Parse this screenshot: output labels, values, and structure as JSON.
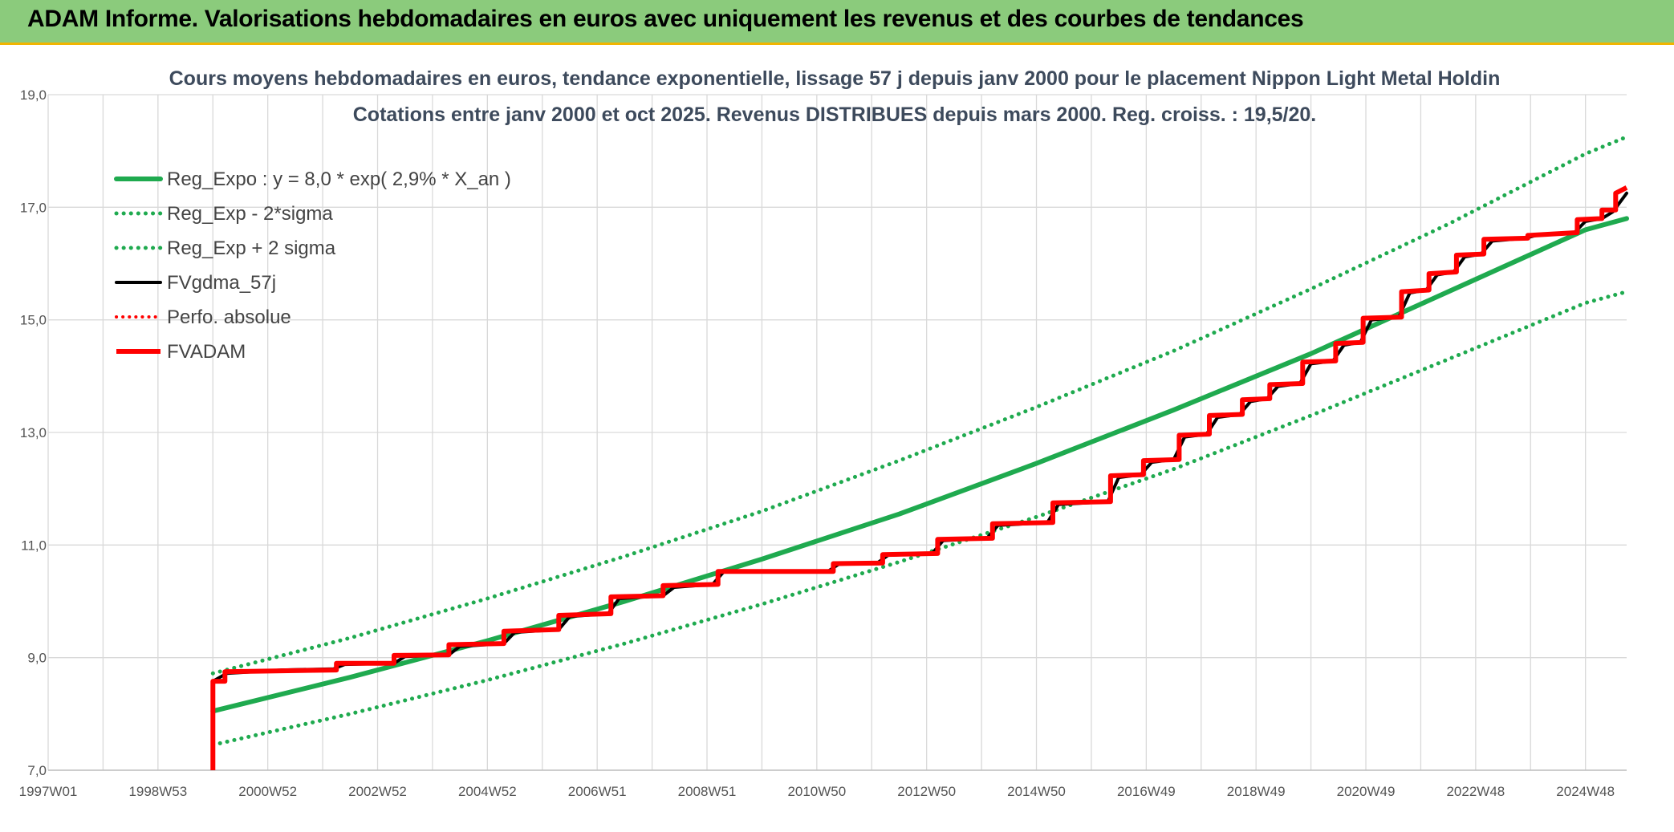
{
  "header": {
    "title": "ADAM Informe. Valorisations hebdomadaires en euros avec uniquement les revenus et des courbes de tendances"
  },
  "colors": {
    "header_bg": "#8bcb7c",
    "header_accent": "#f0b400",
    "reg_green": "#1faa4f",
    "fv_black": "#000000",
    "adam_red": "#ff0000",
    "grid": "#d9d9d9"
  },
  "chart_data": {
    "type": "line",
    "title_line1": "Cours moyens hebdomadaires en euros, tendance exponentielle, lissage 57 j depuis janv 2000 pour le placement Nippon Light Metal Holdin",
    "title_line2": "Cotations entre janv 2000 et oct 2025. Revenus DISTRIBUES depuis mars 2000. Reg. croiss. : 19,5/20.",
    "xlabel": "",
    "ylabel": "",
    "ylim": [
      7.0,
      19.0
    ],
    "xlim": [
      1997.0,
      2025.75
    ],
    "grid": true,
    "legend_position": "top-left",
    "y_ticks": [
      "7,0",
      "9,0",
      "11,0",
      "13,0",
      "15,0",
      "17,0",
      "19,0"
    ],
    "x_ticks": [
      {
        "label": "1997W01",
        "x": 1997.0
      },
      {
        "label": "1998W53",
        "x": 1999.0
      },
      {
        "label": "2000W52",
        "x": 2001.0
      },
      {
        "label": "2002W52",
        "x": 2003.0
      },
      {
        "label": "2004W52",
        "x": 2005.0
      },
      {
        "label": "2006W51",
        "x": 2007.0
      },
      {
        "label": "2008W51",
        "x": 2009.0
      },
      {
        "label": "2010W50",
        "x": 2011.0
      },
      {
        "label": "2012W50",
        "x": 2013.0
      },
      {
        "label": "2014W50",
        "x": 2015.0
      },
      {
        "label": "2016W49",
        "x": 2017.0
      },
      {
        "label": "2018W49",
        "x": 2019.0
      },
      {
        "label": "2020W49",
        "x": 2021.0
      },
      {
        "label": "2022W48",
        "x": 2023.0
      },
      {
        "label": "2024W48",
        "x": 2025.0
      }
    ],
    "series": [
      {
        "name": "Reg_Expo : y = 8,0 * exp( 2,9% *  X_an )",
        "style": "solid-green",
        "points": [
          [
            2000.0,
            8.05
          ],
          [
            2002.5,
            8.65
          ],
          [
            2005.0,
            9.3
          ],
          [
            2007.5,
            10.0
          ],
          [
            2010.0,
            10.75
          ],
          [
            2012.5,
            11.55
          ],
          [
            2015.0,
            12.45
          ],
          [
            2017.5,
            13.4
          ],
          [
            2020.0,
            14.4
          ],
          [
            2022.5,
            15.5
          ],
          [
            2025.0,
            16.6
          ],
          [
            2025.75,
            16.8
          ]
        ]
      },
      {
        "name": "Reg_Exp - 2*sigma",
        "style": "dotted-green",
        "points": [
          [
            2000.0,
            7.45
          ],
          [
            2002.5,
            8.0
          ],
          [
            2005.0,
            8.6
          ],
          [
            2007.5,
            9.25
          ],
          [
            2010.0,
            9.95
          ],
          [
            2012.5,
            10.7
          ],
          [
            2015.0,
            11.5
          ],
          [
            2017.5,
            12.35
          ],
          [
            2020.0,
            13.3
          ],
          [
            2022.5,
            14.3
          ],
          [
            2025.0,
            15.3
          ],
          [
            2025.75,
            15.5
          ]
        ]
      },
      {
        "name": "Reg_Exp + 2 sigma",
        "style": "dotted-green",
        "points": [
          [
            2000.0,
            8.72
          ],
          [
            2002.5,
            9.35
          ],
          [
            2005.0,
            10.05
          ],
          [
            2007.5,
            10.8
          ],
          [
            2010.0,
            11.6
          ],
          [
            2012.5,
            12.5
          ],
          [
            2015.0,
            13.45
          ],
          [
            2017.5,
            14.45
          ],
          [
            2020.0,
            15.55
          ],
          [
            2022.5,
            16.7
          ],
          [
            2025.0,
            17.95
          ],
          [
            2025.75,
            18.25
          ]
        ]
      },
      {
        "name": "FVgdma_57j",
        "style": "solid-black",
        "points": [
          [
            2000.0,
            8.58
          ],
          [
            2000.25,
            8.72
          ],
          [
            2001.25,
            8.78
          ],
          [
            2002.2,
            8.8
          ],
          [
            2002.4,
            8.88
          ],
          [
            2003.3,
            8.9
          ],
          [
            2003.5,
            9.02
          ],
          [
            2004.3,
            9.05
          ],
          [
            2004.5,
            9.2
          ],
          [
            2005.3,
            9.25
          ],
          [
            2005.5,
            9.45
          ],
          [
            2006.3,
            9.5
          ],
          [
            2006.5,
            9.73
          ],
          [
            2007.2,
            9.78
          ],
          [
            2007.4,
            10.05
          ],
          [
            2008.2,
            10.1
          ],
          [
            2008.4,
            10.25
          ],
          [
            2009.1,
            10.3
          ],
          [
            2009.3,
            10.52
          ],
          [
            2011.2,
            10.53
          ],
          [
            2011.4,
            10.66
          ],
          [
            2012.1,
            10.68
          ],
          [
            2012.3,
            10.82
          ],
          [
            2013.1,
            10.85
          ],
          [
            2013.3,
            11.08
          ],
          [
            2014.1,
            11.12
          ],
          [
            2014.3,
            11.35
          ],
          [
            2015.2,
            11.4
          ],
          [
            2015.4,
            11.72
          ],
          [
            2016.3,
            11.77
          ],
          [
            2016.5,
            12.2
          ],
          [
            2016.9,
            12.25
          ],
          [
            2017.1,
            12.47
          ],
          [
            2017.5,
            12.52
          ],
          [
            2017.7,
            12.92
          ],
          [
            2018.1,
            12.97
          ],
          [
            2018.3,
            13.27
          ],
          [
            2018.7,
            13.32
          ],
          [
            2018.9,
            13.55
          ],
          [
            2019.2,
            13.6
          ],
          [
            2019.4,
            13.82
          ],
          [
            2019.8,
            13.87
          ],
          [
            2020.0,
            14.22
          ],
          [
            2020.4,
            14.27
          ],
          [
            2020.6,
            14.55
          ],
          [
            2020.9,
            14.6
          ],
          [
            2021.1,
            15.0
          ],
          [
            2021.6,
            15.05
          ],
          [
            2021.8,
            15.48
          ],
          [
            2022.1,
            15.53
          ],
          [
            2022.3,
            15.8
          ],
          [
            2022.6,
            15.85
          ],
          [
            2022.8,
            16.12
          ],
          [
            2023.1,
            16.17
          ],
          [
            2023.3,
            16.4
          ],
          [
            2023.9,
            16.45
          ],
          [
            2024.1,
            16.5
          ],
          [
            2024.8,
            16.55
          ],
          [
            2025.0,
            16.75
          ],
          [
            2025.3,
            16.8
          ],
          [
            2025.5,
            16.92
          ],
          [
            2025.75,
            17.25
          ]
        ]
      },
      {
        "name": "Perfo. absolue",
        "style": "dotted-red",
        "points": []
      },
      {
        "name": "FVADAM",
        "style": "steps-red",
        "points": [
          [
            2000.0,
            7.0
          ],
          [
            2000.0,
            8.58
          ],
          [
            2000.22,
            8.58
          ],
          [
            2000.22,
            8.75
          ],
          [
            2002.25,
            8.78
          ],
          [
            2002.25,
            8.9
          ],
          [
            2003.3,
            8.9
          ],
          [
            2003.3,
            9.04
          ],
          [
            2004.3,
            9.05
          ],
          [
            2004.3,
            9.23
          ],
          [
            2005.3,
            9.25
          ],
          [
            2005.3,
            9.47
          ],
          [
            2006.3,
            9.5
          ],
          [
            2006.3,
            9.75
          ],
          [
            2007.25,
            9.78
          ],
          [
            2007.25,
            10.08
          ],
          [
            2008.2,
            10.1
          ],
          [
            2008.2,
            10.28
          ],
          [
            2009.2,
            10.3
          ],
          [
            2009.2,
            10.53
          ],
          [
            2011.3,
            10.53
          ],
          [
            2011.3,
            10.67
          ],
          [
            2012.2,
            10.68
          ],
          [
            2012.2,
            10.83
          ],
          [
            2013.2,
            10.85
          ],
          [
            2013.2,
            11.1
          ],
          [
            2014.2,
            11.12
          ],
          [
            2014.2,
            11.38
          ],
          [
            2015.3,
            11.4
          ],
          [
            2015.3,
            11.75
          ],
          [
            2016.35,
            11.77
          ],
          [
            2016.35,
            12.23
          ],
          [
            2016.95,
            12.25
          ],
          [
            2016.95,
            12.5
          ],
          [
            2017.6,
            12.52
          ],
          [
            2017.6,
            12.95
          ],
          [
            2018.15,
            12.97
          ],
          [
            2018.15,
            13.3
          ],
          [
            2018.75,
            13.32
          ],
          [
            2018.75,
            13.58
          ],
          [
            2019.25,
            13.6
          ],
          [
            2019.25,
            13.85
          ],
          [
            2019.85,
            13.87
          ],
          [
            2019.85,
            14.25
          ],
          [
            2020.45,
            14.27
          ],
          [
            2020.45,
            14.58
          ],
          [
            2020.95,
            14.6
          ],
          [
            2020.95,
            15.03
          ],
          [
            2021.65,
            15.05
          ],
          [
            2021.65,
            15.5
          ],
          [
            2022.15,
            15.53
          ],
          [
            2022.15,
            15.82
          ],
          [
            2022.65,
            15.85
          ],
          [
            2022.65,
            16.15
          ],
          [
            2023.15,
            16.17
          ],
          [
            2023.15,
            16.43
          ],
          [
            2023.95,
            16.45
          ],
          [
            2023.95,
            16.5
          ],
          [
            2024.85,
            16.55
          ],
          [
            2024.85,
            16.78
          ],
          [
            2025.3,
            16.8
          ],
          [
            2025.3,
            16.95
          ],
          [
            2025.55,
            16.95
          ],
          [
            2025.55,
            17.25
          ],
          [
            2025.75,
            17.35
          ]
        ]
      }
    ]
  }
}
